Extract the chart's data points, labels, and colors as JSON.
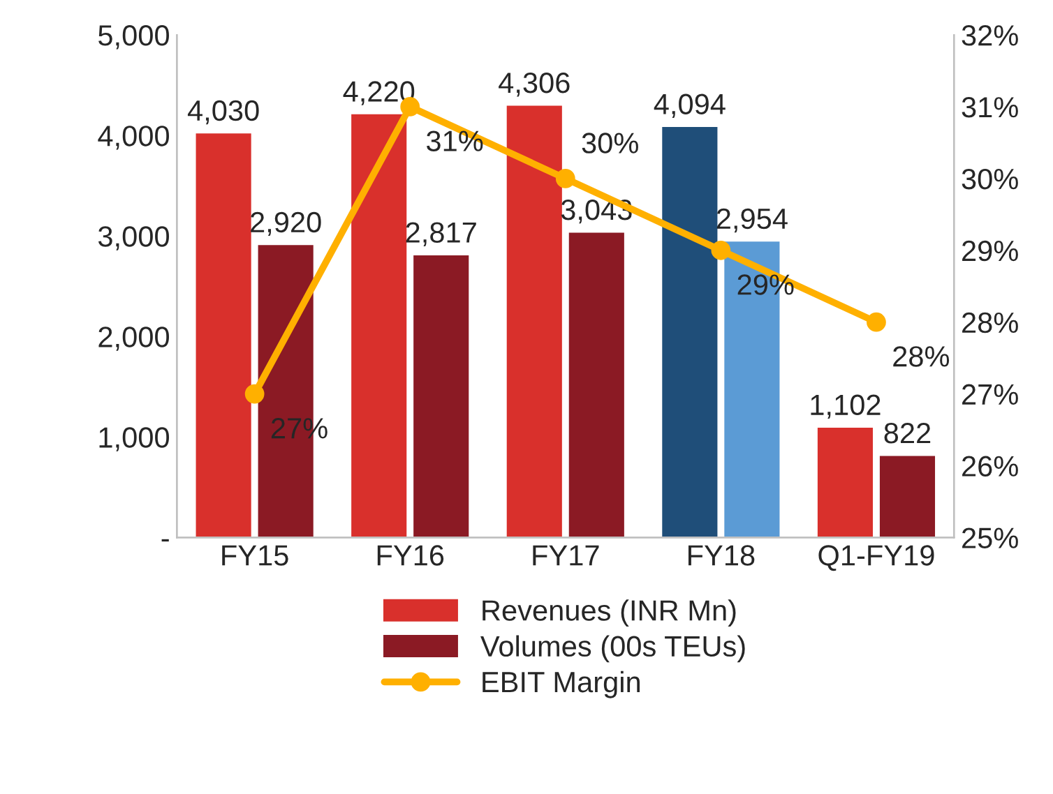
{
  "chart_data": {
    "type": "bar",
    "categories": [
      "FY15",
      "FY16",
      "FY17",
      "FY18",
      "Q1-FY19"
    ],
    "series": [
      {
        "name": "Revenues (INR Mn)",
        "type": "bar",
        "color": "#d9302c",
        "colors": [
          "#d9302c",
          "#d9302c",
          "#d9302c",
          "#1f4e79",
          "#d9302c"
        ],
        "values": [
          4030,
          4220,
          4306,
          4094,
          1102
        ],
        "value_labels": [
          "4,030",
          "4,220",
          "4,306",
          "4,094",
          "1,102"
        ]
      },
      {
        "name": "Volumes (00s TEUs)",
        "type": "bar",
        "color": "#8b1a24",
        "colors": [
          "#8b1a24",
          "#8b1a24",
          "#8b1a24",
          "#5b9bd5",
          "#8b1a24"
        ],
        "values": [
          2920,
          2817,
          3043,
          2954,
          822
        ],
        "value_labels": [
          "2,920",
          "2,817",
          "3,043",
          "2,954",
          "822"
        ]
      },
      {
        "name": "EBIT Margin",
        "type": "line",
        "axis": "y2",
        "color": "#ffb000",
        "marker": "circle",
        "values": [
          27,
          31,
          30,
          29,
          28
        ],
        "value_labels": [
          "27%",
          "31%",
          "30%",
          "29%",
          "28%"
        ]
      }
    ],
    "ylim": [
      0,
      5000
    ],
    "yticks": [
      {
        "value": 0,
        "label": "-"
      },
      {
        "value": 1000,
        "label": "1,000"
      },
      {
        "value": 2000,
        "label": "2,000"
      },
      {
        "value": 3000,
        "label": "3,000"
      },
      {
        "value": 4000,
        "label": "4,000"
      },
      {
        "value": 5000,
        "label": "5,000"
      }
    ],
    "y2lim": [
      25,
      32
    ],
    "y2ticks": [
      {
        "value": 25,
        "label": "25%"
      },
      {
        "value": 26,
        "label": "26%"
      },
      {
        "value": 27,
        "label": "27%"
      },
      {
        "value": 28,
        "label": "28%"
      },
      {
        "value": 29,
        "label": "29%"
      },
      {
        "value": 30,
        "label": "30%"
      },
      {
        "value": 31,
        "label": "31%"
      },
      {
        "value": 32,
        "label": "32%"
      }
    ],
    "grid": false,
    "legend": "bottom"
  }
}
